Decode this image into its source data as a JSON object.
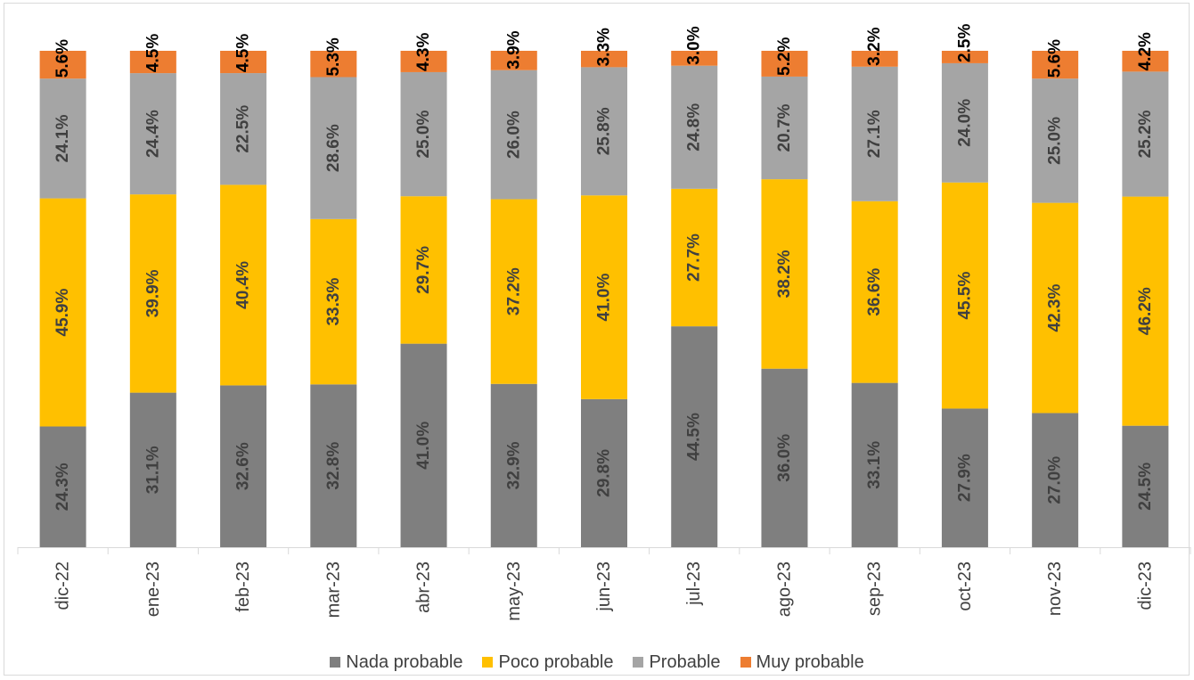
{
  "chart_data": {
    "type": "bar",
    "stacked": true,
    "orientation": "vertical",
    "title": "",
    "xlabel": "",
    "ylabel": "",
    "ylim": [
      0,
      100
    ],
    "grid": false,
    "legend_position": "bottom",
    "categories": [
      "dic-22",
      "ene-23",
      "feb-23",
      "mar-23",
      "abr-23",
      "may-23",
      "jun-23",
      "jul-23",
      "ago-23",
      "sep-23",
      "oct-23",
      "nov-23",
      "dic-23"
    ],
    "series": [
      {
        "name": "Nada probable",
        "color": "#7f7f7f",
        "label_color": "#404040",
        "values": [
          24.3,
          31.1,
          32.6,
          32.8,
          41.0,
          32.9,
          29.8,
          44.5,
          36.0,
          33.1,
          27.9,
          27.0,
          24.5
        ],
        "labels": [
          "24.3%",
          "31.1%",
          "32.6%",
          "32.8%",
          "41.0%",
          "32.9%",
          "29.8%",
          "44.5%",
          "36.0%",
          "33.1%",
          "27.9%",
          "27.0%",
          "24.5%"
        ]
      },
      {
        "name": "Poco probable",
        "color": "#ffc000",
        "label_color": "#404040",
        "values": [
          45.9,
          39.9,
          40.4,
          33.3,
          29.7,
          37.2,
          41.0,
          27.7,
          38.2,
          36.6,
          45.5,
          42.3,
          46.2
        ],
        "labels": [
          "45.9%",
          "39.9%",
          "40.4%",
          "33.3%",
          "29.7%",
          "37.2%",
          "41.0%",
          "27.7%",
          "38.2%",
          "36.6%",
          "45.5%",
          "42.3%",
          "46.2%"
        ]
      },
      {
        "name": "Probable",
        "color": "#a5a5a5",
        "label_color": "#404040",
        "values": [
          24.1,
          24.4,
          22.5,
          28.6,
          25.0,
          26.0,
          25.8,
          24.8,
          20.7,
          27.1,
          24.0,
          25.0,
          25.2
        ],
        "labels": [
          "24.1%",
          "24.4%",
          "22.5%",
          "28.6%",
          "25.0%",
          "26.0%",
          "25.8%",
          "24.8%",
          "20.7%",
          "27.1%",
          "24.0%",
          "25.0%",
          "25.2%"
        ]
      },
      {
        "name": "Muy probable",
        "color": "#ed7d31",
        "label_color": "#000000",
        "values": [
          5.6,
          4.5,
          4.5,
          5.3,
          4.3,
          3.9,
          3.3,
          3.0,
          5.2,
          3.2,
          2.5,
          5.6,
          4.2
        ],
        "labels": [
          "5.6%",
          "4.5%",
          "4.5%",
          "5.3%",
          "4.3%",
          "3.9%",
          "3.3%",
          "3.0%",
          "5.2%",
          "3.2%",
          "2.5%",
          "5.6%",
          "4.2%"
        ]
      }
    ]
  }
}
